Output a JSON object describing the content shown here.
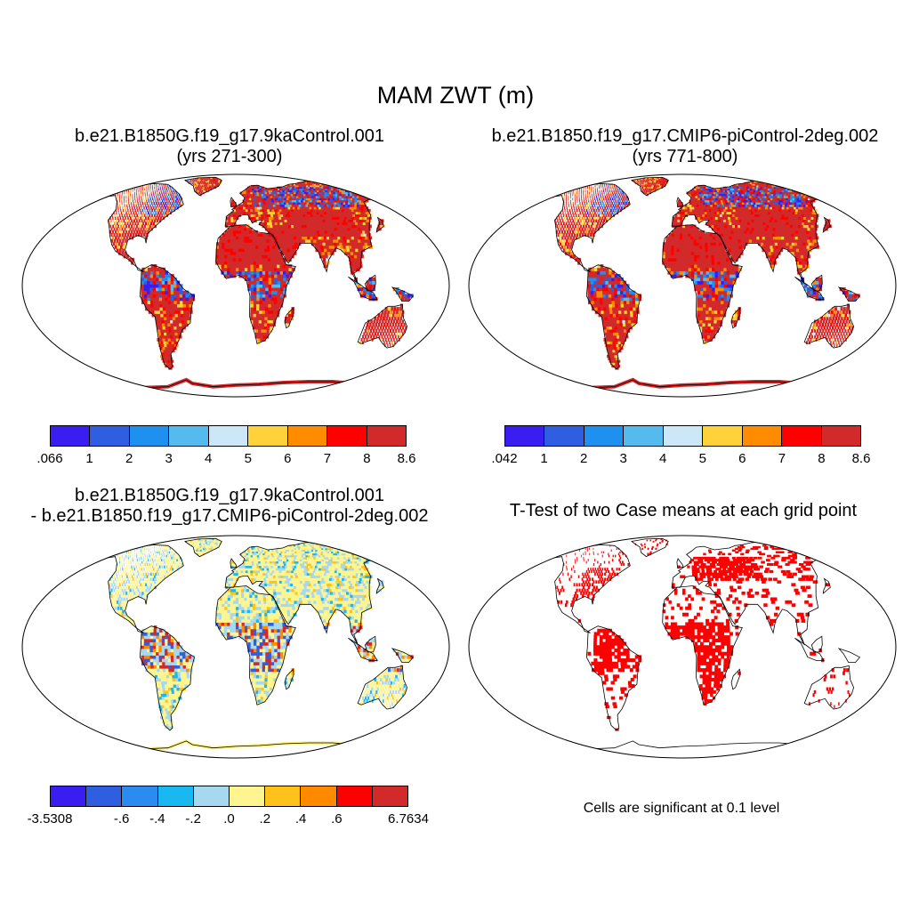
{
  "title": "MAM ZWT (m)",
  "panels": [
    {
      "id": "p1",
      "title_line1": "b.e21.B1850G.f19_g17.9kaControl.001",
      "title_line2": "(yrs 271-300)",
      "type": "absolute"
    },
    {
      "id": "p2",
      "title_line1": "b.e21.B1850.f19_g17.CMIP6-piControl-2deg.002",
      "title_line2": "(yrs 771-800)",
      "type": "absolute"
    },
    {
      "id": "p3",
      "title_line1": "b.e21.B1850G.f19_g17.9kaControl.001",
      "title_line2": "- b.e21.B1850.f19_g17.CMIP6-piControl-2deg.002",
      "type": "difference"
    },
    {
      "id": "p4",
      "title_line1": "T-Test of two Case means at each grid point",
      "title_line2": "",
      "type": "significance"
    }
  ],
  "colorbars": [
    {
      "id": "cb1",
      "colors": [
        "#3a1df0",
        "#2f5fe0",
        "#1e90f0",
        "#55bbee",
        "#cce8f8",
        "#ffd23a",
        "#ff8c00",
        "#ff0000",
        "#d22a2a"
      ],
      "labels": [
        ".066",
        "1",
        "2",
        "3",
        "4",
        "5",
        "6",
        "7",
        "8",
        "8.6"
      ]
    },
    {
      "id": "cb2",
      "colors": [
        "#3a1df0",
        "#2f5fe0",
        "#1e90f0",
        "#55bbee",
        "#cce8f8",
        "#ffd23a",
        "#ff8c00",
        "#ff0000",
        "#d22a2a"
      ],
      "labels": [
        ".042",
        "1",
        "2",
        "3",
        "4",
        "5",
        "6",
        "7",
        "8",
        "8.6"
      ]
    },
    {
      "id": "cb3",
      "colors": [
        "#3a1df0",
        "#2f5fe0",
        "#2a8cf0",
        "#1ab8f0",
        "#a6d8f0",
        "#fff590",
        "#ffc21a",
        "#ff8a00",
        "#ff0000",
        "#d22a2a"
      ],
      "labels": [
        "-3.5308",
        "",
        "-.6",
        "-.4",
        "-.2",
        ".0",
        ".2",
        ".4",
        ".6",
        "",
        "6.7634"
      ]
    }
  ],
  "significance_note": "Cells are significant at 0.1 level",
  "colors": {
    "sig_cell": "#ff0000",
    "coast": "#000000",
    "frame": "#000000"
  }
}
